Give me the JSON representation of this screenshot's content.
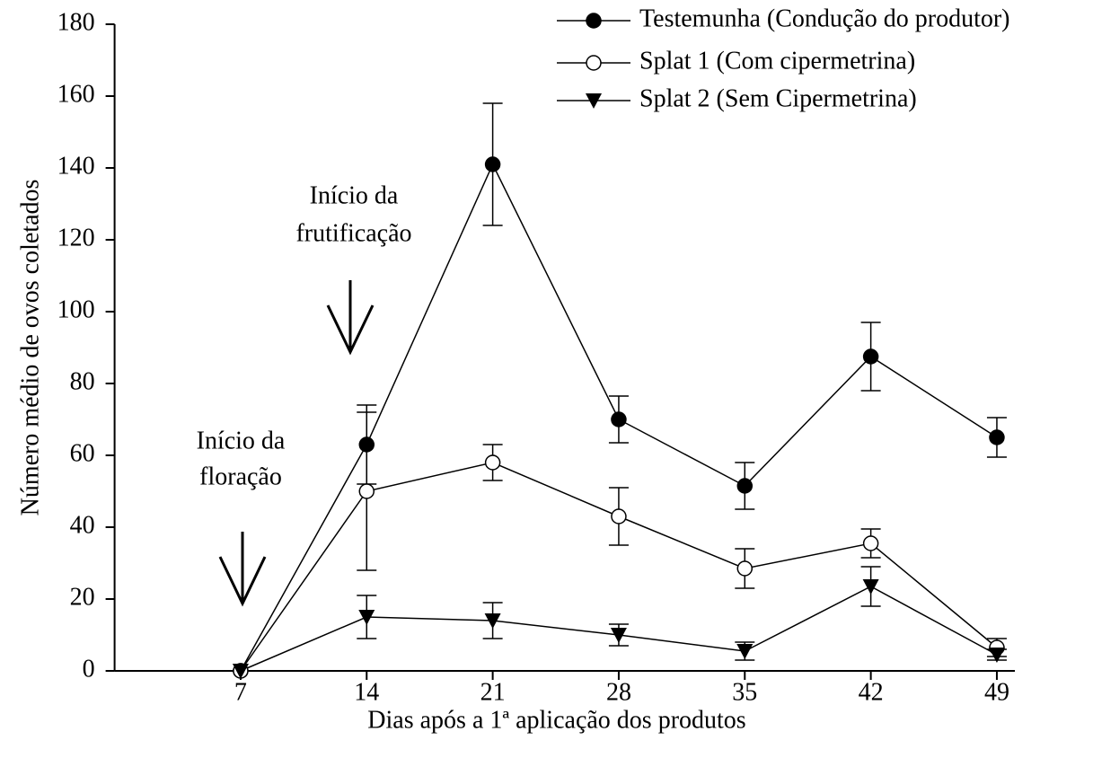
{
  "chart_data": {
    "type": "line",
    "xlabel": "Dias após a 1ª aplicação dos produtos",
    "ylabel": "Número médio de ovos coletados",
    "x": [
      7,
      14,
      21,
      28,
      35,
      42,
      49
    ],
    "xlim": [
      0,
      50
    ],
    "xticks": [
      7,
      14,
      21,
      28,
      35,
      42,
      49
    ],
    "ylim": [
      0,
      180
    ],
    "yticks": [
      0,
      20,
      40,
      60,
      80,
      100,
      120,
      140,
      160,
      180
    ],
    "legend": "top-right",
    "series": [
      {
        "name": "Testemunha (Condução do produtor)",
        "color": "#000000",
        "marker": "filled-circle",
        "values": [
          0,
          63,
          141,
          70,
          51.5,
          87.5,
          65
        ],
        "errors": [
          0,
          11,
          17,
          6.5,
          6.5,
          9.5,
          5.5
        ]
      },
      {
        "name": "Splat 1 (Com cipermetrina)",
        "color": "#000000",
        "marker": "open-circle",
        "values": [
          0,
          50,
          58,
          43,
          28.5,
          35.5,
          6.5
        ],
        "errors": [
          0,
          22,
          5,
          8,
          5.5,
          4,
          2.5
        ]
      },
      {
        "name": "Splat 2 (Sem Cipermetrina)",
        "color": "#000000",
        "marker": "triangle-down",
        "values": [
          0,
          15,
          14,
          10,
          5.5,
          23.5,
          4.5
        ],
        "errors": [
          0,
          6,
          5,
          3,
          2.5,
          5.5,
          1.5
        ]
      }
    ],
    "annotations": [
      {
        "lines": [
          "Início da",
          "frutificação"
        ]
      },
      {
        "lines": [
          "Início da",
          "floração"
        ]
      }
    ]
  }
}
